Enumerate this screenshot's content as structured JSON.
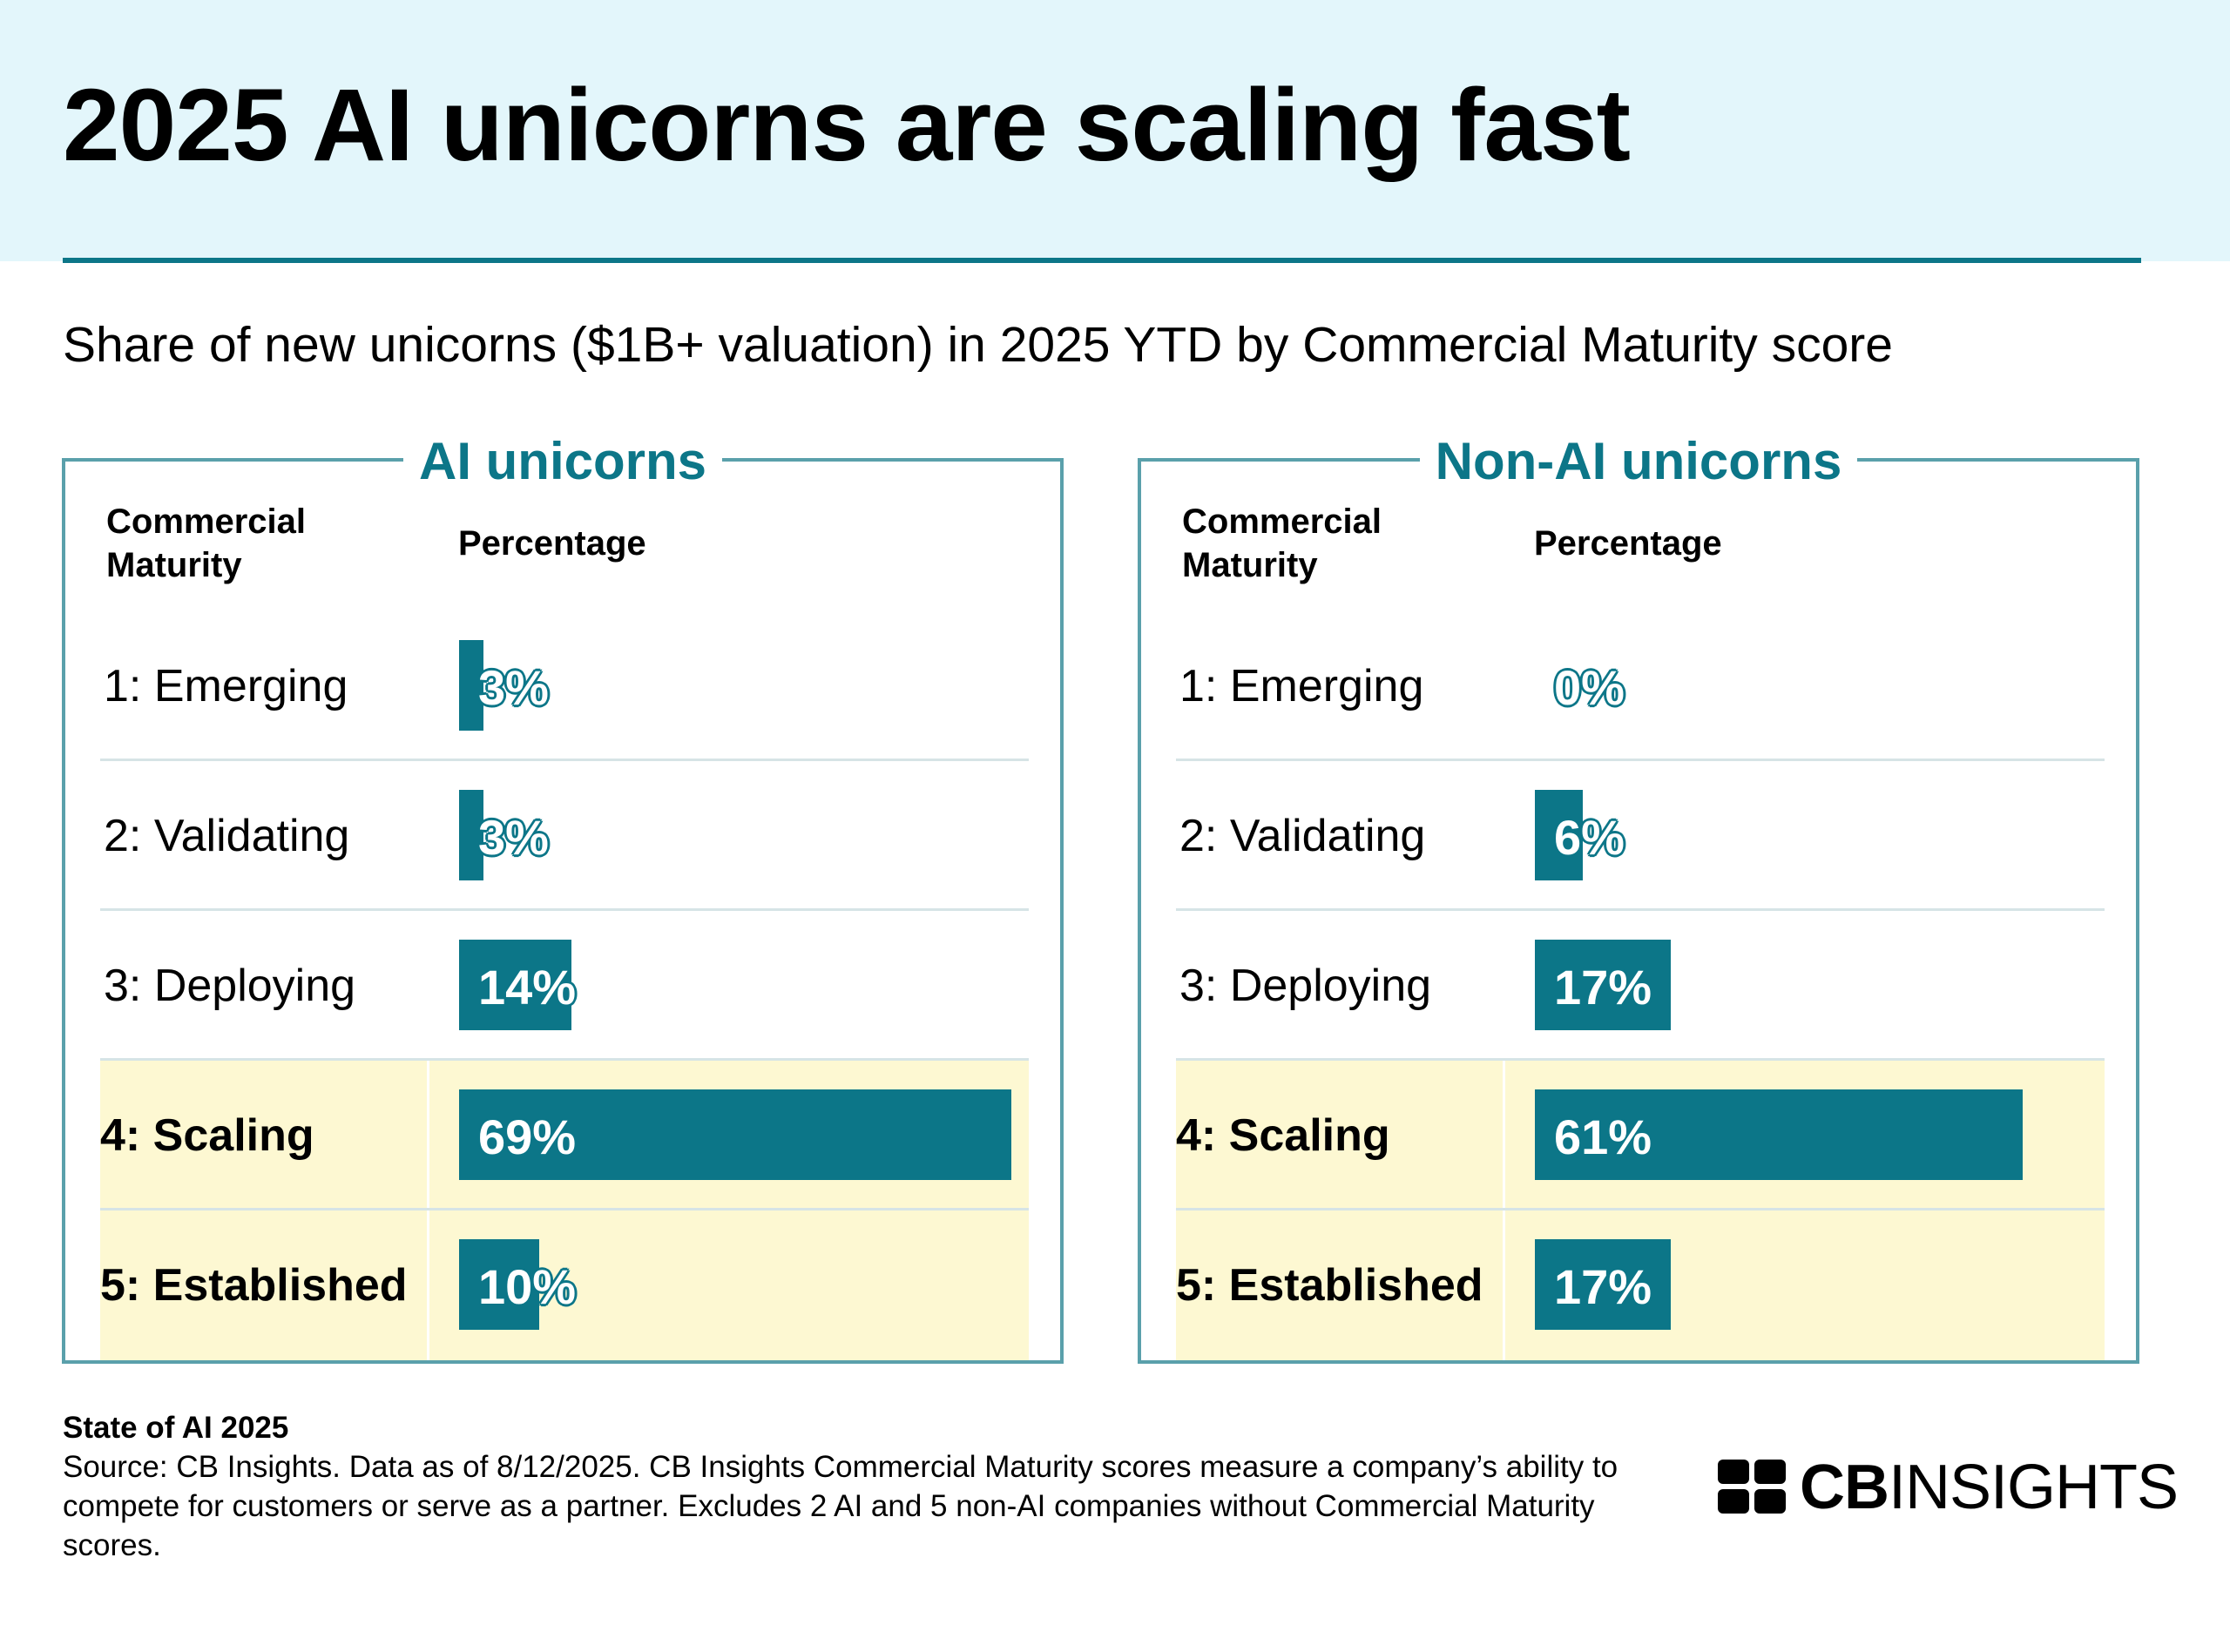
{
  "header": {
    "title": "2025 AI unicorns are scaling fast",
    "subtitle": "Share of new unicorns ($1B+ valuation) in 2025 YTD by Commercial Maturity score"
  },
  "chart_data": [
    {
      "type": "bar",
      "orientation": "horizontal",
      "title": "AI unicorns",
      "xlabel": "Percentage",
      "ylabel": "Commercial Maturity",
      "categories": [
        "1: Emerging",
        "2: Validating",
        "3: Deploying",
        "4: Scaling",
        "5: Established"
      ],
      "values": [
        3,
        3,
        14,
        69,
        10
      ],
      "value_labels": [
        "3%",
        "3%",
        "14%",
        "69%",
        "10%"
      ],
      "highlighted": [
        "4: Scaling",
        "5: Established"
      ],
      "xlim": [
        0,
        70
      ],
      "unit": "%"
    },
    {
      "type": "bar",
      "orientation": "horizontal",
      "title": "Non-AI unicorns",
      "xlabel": "Percentage",
      "ylabel": "Commercial Maturity",
      "categories": [
        "1: Emerging",
        "2: Validating",
        "3: Deploying",
        "4: Scaling",
        "5: Established"
      ],
      "values": [
        0,
        6,
        17,
        61,
        17
      ],
      "value_labels": [
        "0%",
        "6%",
        "17%",
        "61%",
        "17%"
      ],
      "highlighted": [
        "4: Scaling",
        "5: Established"
      ],
      "xlim": [
        0,
        70
      ],
      "unit": "%"
    }
  ],
  "footer": {
    "report": "State of AI 2025",
    "source": "Source: CB Insights. Data as of 8/12/2025. CB Insights Commercial Maturity scores measure a company’s ability to compete for customers or serve as a partner. Excludes 2 AI and 5 non-AI companies without Commercial Maturity scores."
  },
  "logo": {
    "bold": "CB",
    "regular": "INSIGHTS",
    "icon": "cb-insights-logo-icon"
  },
  "colors": {
    "accent": "#0c7688",
    "header_band": "#e3f6fb",
    "highlight": "#fdf8d2",
    "panel_border": "#5aa0ab"
  }
}
